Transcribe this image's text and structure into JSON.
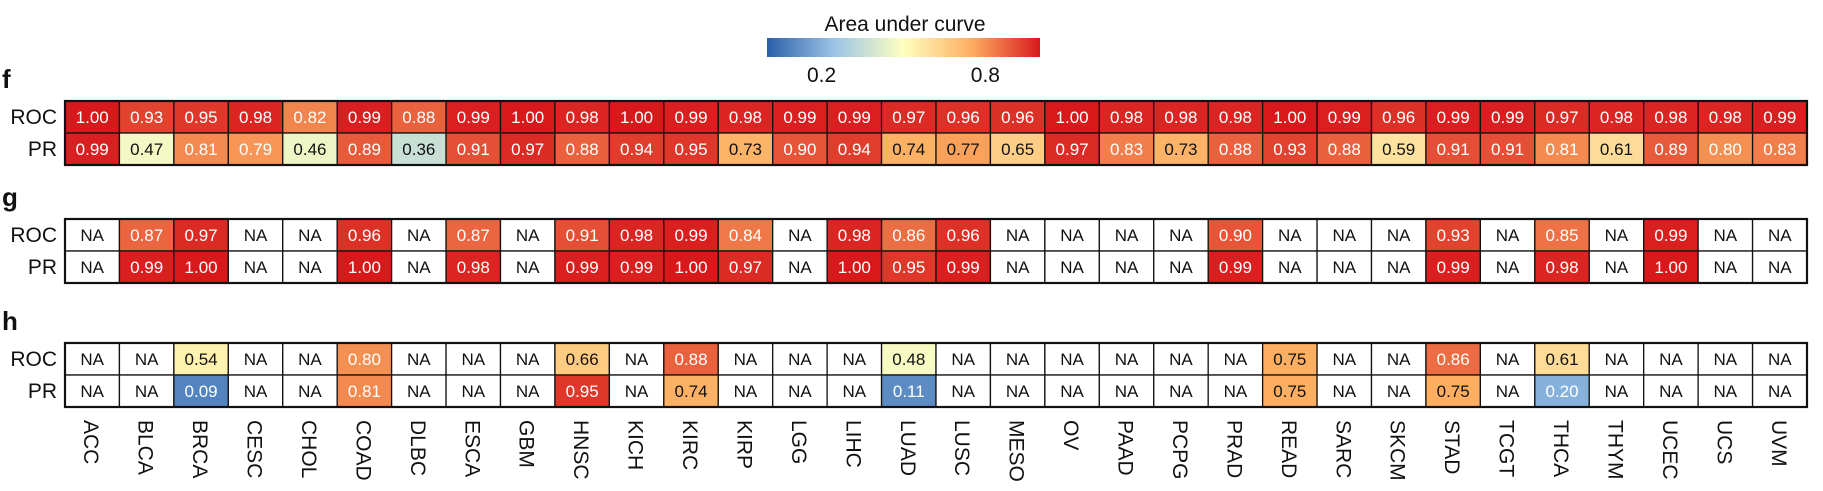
{
  "chart_data": {
    "type": "heatmap",
    "colorbar": {
      "title": "Area under curve",
      "tick_labels": [
        "0.2",
        "0.8"
      ],
      "tick_values": [
        0.2,
        0.8
      ],
      "range": [
        0.0,
        1.0
      ],
      "colors": [
        "#2c5faa",
        "#9cc5e6",
        "#ffffbf",
        "#fdae61",
        "#d7191c"
      ]
    },
    "columns": [
      "ACC",
      "BLCA",
      "BRCA",
      "CESC",
      "CHOL",
      "COAD",
      "DLBC",
      "ESCA",
      "GBM",
      "HNSC",
      "KICH",
      "KIRC",
      "KIRP",
      "LGG",
      "LIHC",
      "LUAD",
      "LUSC",
      "MESO",
      "OV",
      "PAAD",
      "PCPG",
      "PRAD",
      "READ",
      "SARC",
      "SKCM",
      "STAD",
      "TCGT",
      "THCA",
      "THYM",
      "UCEC",
      "UCS",
      "UVM"
    ],
    "panels": [
      {
        "label": "f",
        "rows": [
          {
            "name": "ROC",
            "values": [
              "1.00",
              "0.93",
              "0.95",
              "0.98",
              "0.82",
              "0.99",
              "0.88",
              "0.99",
              "1.00",
              "0.98",
              "1.00",
              "0.99",
              "0.98",
              "0.99",
              "0.99",
              "0.97",
              "0.96",
              "0.96",
              "1.00",
              "0.98",
              "0.98",
              "0.98",
              "1.00",
              "0.99",
              "0.96",
              "0.99",
              "0.99",
              "0.97",
              "0.98",
              "0.98",
              "0.98",
              "0.99"
            ]
          },
          {
            "name": "PR",
            "values": [
              "0.99",
              "0.47",
              "0.81",
              "0.79",
              "0.46",
              "0.89",
              "0.36",
              "0.91",
              "0.97",
              "0.88",
              "0.94",
              "0.95",
              "0.73",
              "0.90",
              "0.94",
              "0.74",
              "0.77",
              "0.65",
              "0.97",
              "0.83",
              "0.73",
              "0.88",
              "0.93",
              "0.88",
              "0.59",
              "0.91",
              "0.91",
              "0.81",
              "0.61",
              "0.89",
              "0.80",
              "0.83"
            ]
          }
        ]
      },
      {
        "label": "g",
        "rows": [
          {
            "name": "ROC",
            "values": [
              "NA",
              "0.87",
              "0.97",
              "NA",
              "NA",
              "0.96",
              "NA",
              "0.87",
              "NA",
              "0.91",
              "0.98",
              "0.99",
              "0.84",
              "NA",
              "0.98",
              "0.86",
              "0.96",
              "NA",
              "NA",
              "NA",
              "NA",
              "0.90",
              "NA",
              "NA",
              "NA",
              "0.93",
              "NA",
              "0.85",
              "NA",
              "0.99",
              "NA",
              "NA"
            ]
          },
          {
            "name": "PR",
            "values": [
              "NA",
              "0.99",
              "1.00",
              "NA",
              "NA",
              "1.00",
              "NA",
              "0.98",
              "NA",
              "0.99",
              "0.99",
              "1.00",
              "0.97",
              "NA",
              "1.00",
              "0.95",
              "0.99",
              "NA",
              "NA",
              "NA",
              "NA",
              "0.99",
              "NA",
              "NA",
              "NA",
              "0.99",
              "NA",
              "0.98",
              "NA",
              "1.00",
              "NA",
              "NA"
            ]
          }
        ]
      },
      {
        "label": "h",
        "rows": [
          {
            "name": "ROC",
            "values": [
              "NA",
              "NA",
              "0.54",
              "NA",
              "NA",
              "0.80",
              "NA",
              "NA",
              "NA",
              "0.66",
              "NA",
              "0.88",
              "NA",
              "NA",
              "NA",
              "0.48",
              "NA",
              "NA",
              "NA",
              "NA",
              "NA",
              "NA",
              "0.75",
              "NA",
              "NA",
              "0.86",
              "NA",
              "0.61",
              "NA",
              "NA",
              "NA",
              "NA"
            ]
          },
          {
            "name": "PR",
            "values": [
              "NA",
              "NA",
              "0.09",
              "NA",
              "NA",
              "0.81",
              "NA",
              "NA",
              "NA",
              "0.95",
              "NA",
              "0.74",
              "NA",
              "NA",
              "NA",
              "0.11",
              "NA",
              "NA",
              "NA",
              "NA",
              "NA",
              "NA",
              "0.75",
              "NA",
              "NA",
              "0.75",
              "NA",
              "0.20",
              "NA",
              "NA",
              "NA",
              "NA"
            ]
          }
        ]
      }
    ]
  }
}
